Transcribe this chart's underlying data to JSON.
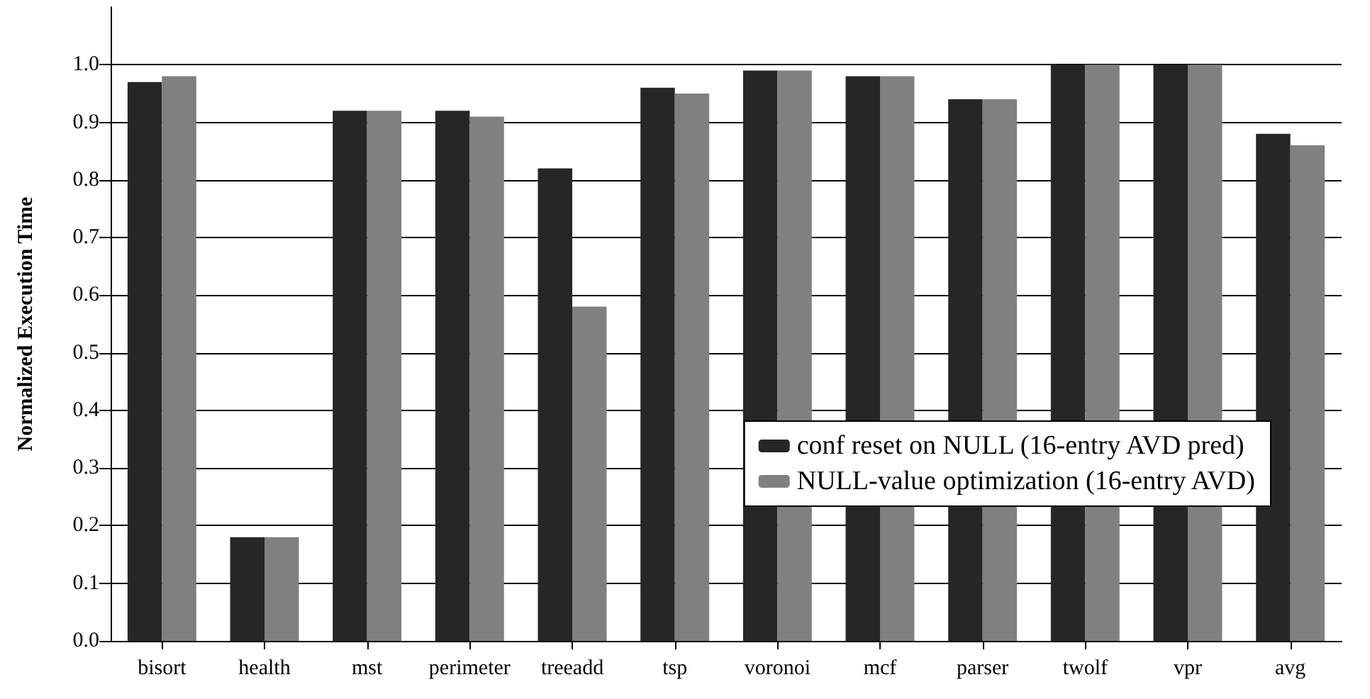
{
  "chart_data": {
    "type": "bar",
    "ylabel": "Normalized Execution Time",
    "categories": [
      "bisort",
      "health",
      "mst",
      "perimeter",
      "treeadd",
      "tsp",
      "voronoi",
      "mcf",
      "parser",
      "twolf",
      "vpr",
      "avg"
    ],
    "series": [
      {
        "name": "conf reset on NULL (16-entry AVD pred)",
        "color": "#262626",
        "values": [
          0.97,
          0.18,
          0.92,
          0.92,
          0.82,
          0.96,
          0.99,
          0.98,
          0.94,
          1.0,
          1.0,
          0.88
        ]
      },
      {
        "name": "NULL-value optimization (16-entry AVD)",
        "color": "#808080",
        "values": [
          0.98,
          0.18,
          0.92,
          0.91,
          0.58,
          0.95,
          0.99,
          0.98,
          0.94,
          1.0,
          1.0,
          0.86
        ]
      }
    ],
    "ylim": [
      0,
      1.1
    ],
    "yticks": [
      {
        "value": 0,
        "label": "0.0"
      },
      0.1,
      0.2,
      0.3,
      0.4,
      0.5,
      0.6,
      0.7,
      0.8,
      0.9,
      {
        "value": 1,
        "label": "1.0"
      }
    ],
    "grid": "y",
    "legend": "right"
  }
}
